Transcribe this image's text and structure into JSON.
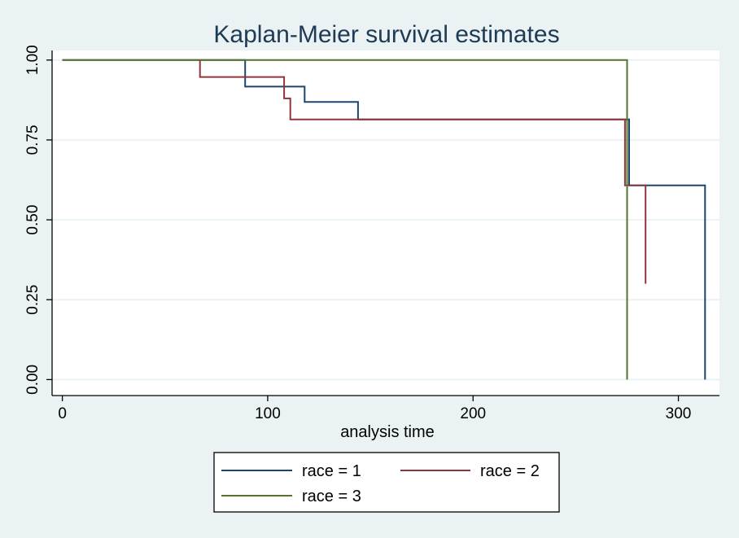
{
  "chart_data": {
    "type": "line",
    "title": "Kaplan-Meier survival estimates",
    "xlabel": "analysis time",
    "ylabel": "",
    "xlim": [
      -5,
      320
    ],
    "ylim": [
      -0.05,
      1.03
    ],
    "xticks": [
      0,
      100,
      200,
      300
    ],
    "xtick_labels": [
      "0",
      "100",
      "200",
      "300"
    ],
    "yticks": [
      0,
      0.25,
      0.5,
      0.75,
      1
    ],
    "ytick_labels": [
      "0.00",
      "0.25",
      "0.50",
      "0.75",
      "1.00"
    ],
    "grid": true,
    "legend_position": "bottom",
    "step": true,
    "series": [
      {
        "name": "race = 1",
        "color": "#1a476f",
        "x": [
          0,
          89,
          89,
          118,
          118,
          144,
          144,
          276,
          276,
          313,
          313
        ],
        "y": [
          1.0,
          1.0,
          0.917,
          0.917,
          0.869,
          0.869,
          0.814,
          0.814,
          0.608,
          0.608,
          0.0
        ]
      },
      {
        "name": "race = 2",
        "color": "#90353b",
        "x": [
          67,
          67,
          108,
          108,
          111,
          111,
          274,
          274,
          284,
          284
        ],
        "y": [
          1.0,
          0.947,
          0.947,
          0.88,
          0.88,
          0.814,
          0.814,
          0.608,
          0.608,
          0.3
        ]
      },
      {
        "name": "race = 3",
        "color": "#55752f",
        "x": [
          0,
          275,
          275
        ],
        "y": [
          1.0,
          1.0,
          0.0
        ]
      }
    ]
  }
}
